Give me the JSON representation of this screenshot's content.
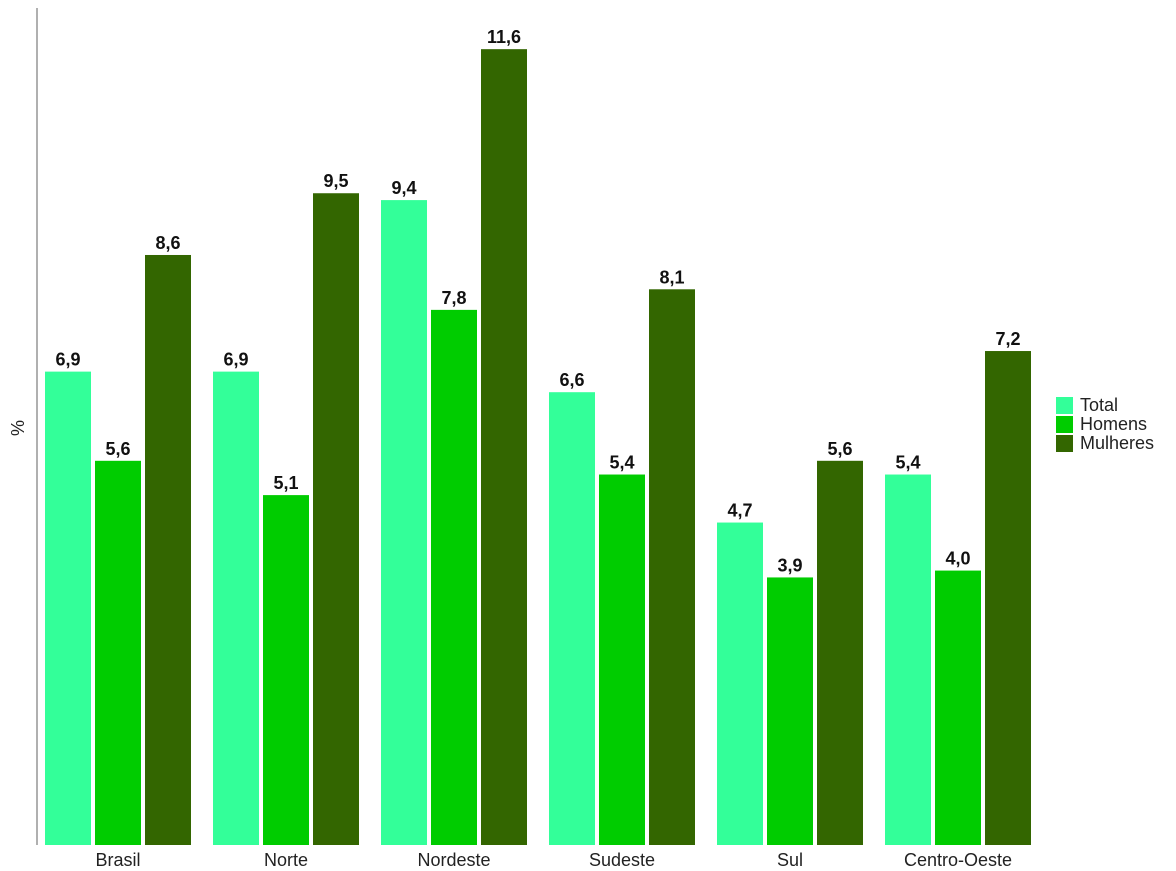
{
  "chart_data": {
    "type": "bar",
    "ylabel": "%",
    "ylim": [
      0,
      12.2
    ],
    "grid": false,
    "legend_position": "right",
    "categories": [
      "Brasil",
      "Norte",
      "Nordeste",
      "Sudeste",
      "Sul",
      "Centro-Oeste"
    ],
    "series": [
      {
        "name": "Total",
        "color": "#33FF99",
        "values": [
          6.9,
          6.9,
          9.4,
          6.6,
          4.7,
          5.4
        ],
        "labels": [
          "6,9",
          "6,9",
          "9,4",
          "6,6",
          "4,7",
          "5,4"
        ]
      },
      {
        "name": "Homens",
        "color": "#00CC00",
        "values": [
          5.6,
          5.1,
          7.8,
          5.4,
          3.9,
          4.0
        ],
        "labels": [
          "5,6",
          "5,1",
          "7,8",
          "5,4",
          "3,9",
          "4,0"
        ]
      },
      {
        "name": "Mulheres",
        "color": "#336600",
        "values": [
          8.6,
          9.5,
          11.6,
          8.1,
          5.6,
          7.2
        ],
        "labels": [
          "8,6",
          "9,5",
          "11,6",
          "8,1",
          "5,6",
          "7,2"
        ]
      }
    ]
  }
}
